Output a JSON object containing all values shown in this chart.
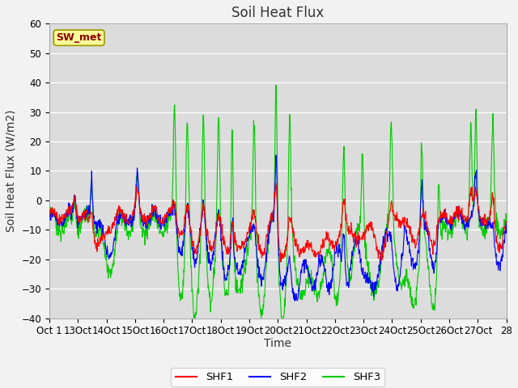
{
  "title": "Soil Heat Flux",
  "ylabel": "Soil Heat Flux (W/m2)",
  "xlabel": "Time",
  "ylim": [
    -40,
    60
  ],
  "xlim_days": 27,
  "annotation_text": "SW_met",
  "annotation_color": "#8B0000",
  "annotation_bg": "#FFFF99",
  "annotation_edge": "#999900",
  "line_colors": [
    "#FF0000",
    "#0000FF",
    "#00CC00"
  ],
  "line_labels": [
    "SHF1",
    "SHF2",
    "SHF3"
  ],
  "plot_bg_color": "#DCDCDC",
  "fig_bg_color": "#F2F2F2",
  "title_fontsize": 12,
  "axis_label_fontsize": 10,
  "tick_fontsize": 8.5,
  "yticks": [
    -40,
    -30,
    -20,
    -10,
    0,
    10,
    20,
    30,
    40,
    50,
    60
  ]
}
